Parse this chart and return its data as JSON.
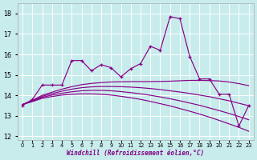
{
  "background_color": "#c8ecec",
  "grid_color": "#ffffff",
  "line_color": "#880088",
  "xlabel": "Windchill (Refroidissement éolien,°C)",
  "ylim": [
    11.8,
    18.5
  ],
  "yticks": [
    12,
    13,
    14,
    15,
    16,
    17,
    18
  ],
  "xticks": [
    0,
    1,
    2,
    3,
    4,
    5,
    6,
    7,
    8,
    9,
    10,
    11,
    12,
    13,
    14,
    15,
    16,
    17,
    18,
    19,
    20,
    21,
    22,
    23
  ],
  "line_jagged": [
    13.5,
    13.8,
    14.5,
    14.5,
    14.5,
    15.7,
    15.7,
    15.2,
    15.5,
    15.35,
    14.9,
    15.3,
    15.55,
    16.4,
    16.2,
    17.85,
    17.75,
    15.9,
    14.8,
    14.8,
    14.05,
    14.05,
    12.5,
    13.5
  ],
  "smooth1": [
    13.55,
    13.75,
    14.0,
    14.15,
    14.3,
    14.42,
    14.52,
    14.58,
    14.62,
    14.65,
    14.66,
    14.67,
    14.67,
    14.67,
    14.68,
    14.69,
    14.71,
    14.73,
    14.73,
    14.72,
    14.7,
    14.65,
    14.57,
    14.47
  ],
  "smooth2": [
    13.55,
    13.73,
    13.95,
    14.08,
    14.2,
    14.3,
    14.37,
    14.41,
    14.43,
    14.43,
    14.42,
    14.4,
    14.37,
    14.33,
    14.28,
    14.22,
    14.16,
    14.09,
    14.01,
    13.93,
    13.83,
    13.73,
    13.61,
    13.49
  ],
  "smooth3": [
    13.55,
    13.71,
    13.9,
    14.01,
    14.1,
    14.17,
    14.22,
    14.24,
    14.24,
    14.22,
    14.18,
    14.13,
    14.07,
    14.0,
    13.92,
    13.83,
    13.73,
    13.62,
    13.51,
    13.38,
    13.25,
    13.11,
    12.96,
    12.8
  ],
  "smooth4": [
    13.55,
    13.69,
    13.85,
    13.94,
    14.01,
    14.05,
    14.07,
    14.07,
    14.05,
    14.01,
    13.95,
    13.88,
    13.8,
    13.7,
    13.59,
    13.48,
    13.35,
    13.22,
    13.08,
    12.93,
    12.77,
    12.6,
    12.43,
    12.24
  ]
}
